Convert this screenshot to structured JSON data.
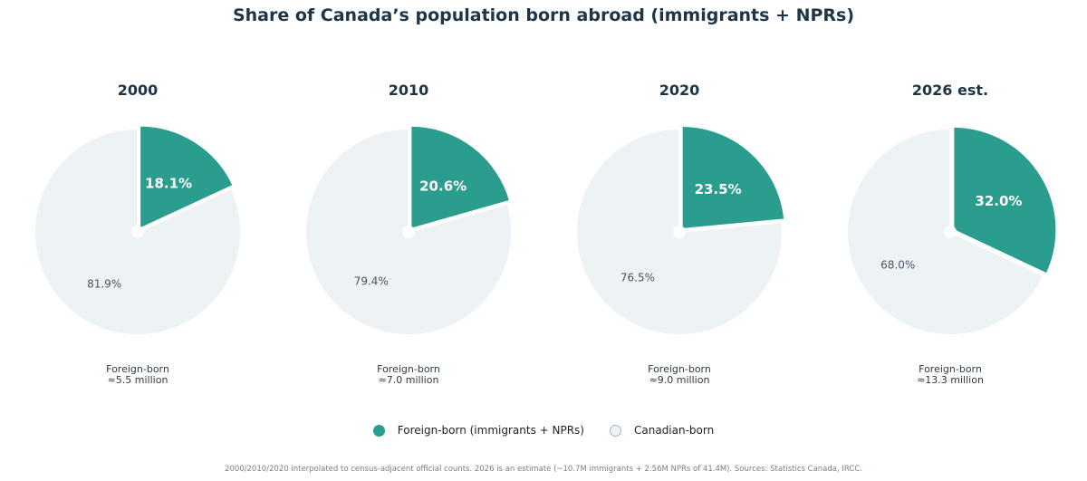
{
  "title": "Share of Canada’s population born abroad  (immigrants + NPRs)",
  "colors": {
    "foreign": "#2a9d8f",
    "canadian": "#edf2f5",
    "canadian_edge": "#a8b4bd",
    "text_dark": "#1d3546"
  },
  "chart_data": {
    "type": "pie",
    "charts": [
      {
        "title": "2000",
        "slices": [
          {
            "label": "Foreign-born (immigrants + NPRs)",
            "value": 18.1,
            "display": "18.1%"
          },
          {
            "label": "Canadian-born",
            "value": 81.9,
            "display": "81.9%"
          }
        ],
        "caption_line1": "Foreign-born",
        "caption_line2": "≈5.5 million"
      },
      {
        "title": "2010",
        "slices": [
          {
            "label": "Foreign-born (immigrants + NPRs)",
            "value": 20.6,
            "display": "20.6%"
          },
          {
            "label": "Canadian-born",
            "value": 79.4,
            "display": "79.4%"
          }
        ],
        "caption_line1": "Foreign-born",
        "caption_line2": "≈7.0 million"
      },
      {
        "title": "2020",
        "slices": [
          {
            "label": "Foreign-born (immigrants + NPRs)",
            "value": 23.5,
            "display": "23.5%"
          },
          {
            "label": "Canadian-born",
            "value": 76.5,
            "display": "76.5%"
          }
        ],
        "caption_line1": "Foreign-born",
        "caption_line2": "≈9.0 million"
      },
      {
        "title": "2026 est.",
        "slices": [
          {
            "label": "Foreign-born (immigrants + NPRs)",
            "value": 32.0,
            "display": "32.0%"
          },
          {
            "label": "Canadian-born",
            "value": 68.0,
            "display": "68.0%"
          }
        ],
        "caption_line1": "Foreign-born",
        "caption_line2": "≈13.3 million"
      }
    ],
    "legend": {
      "placement": "bottom-center",
      "entries": [
        "Foreign-born (immigrants + NPRs)",
        "Canadian-born"
      ]
    }
  },
  "footnote": "2000/2010/2020 interpolated to census-adjacent official counts. 2026 is an estimate (~10.7M immigrants + 2.56M NPRs of 41.4M). Sources: Statistics Canada, IRCC."
}
